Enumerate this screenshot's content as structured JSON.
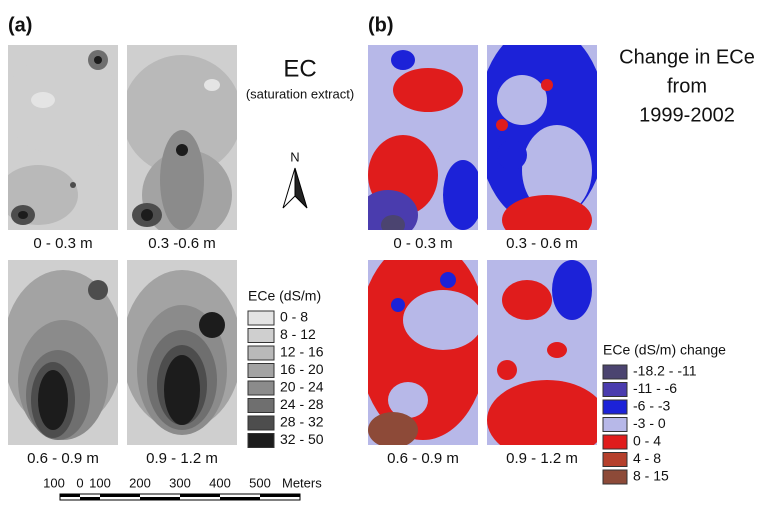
{
  "panel_a": {
    "label": "(a)",
    "title": "EC",
    "subtitle": "(saturation extract)",
    "depths": [
      "0 - 0.3 m",
      "0.3 -0.6 m",
      "0.6 - 0.9 m",
      "0.9 - 1.2 m"
    ],
    "legend": {
      "title": "ECe (dS/m)",
      "classes": [
        "0 - 8",
        "8 - 12",
        "12 - 16",
        "16 - 20",
        "20 - 24",
        "24 - 28",
        "28 - 32",
        "32 - 50"
      ],
      "colors": [
        "#e4e4e4",
        "#cfcfcf",
        "#b9b9b9",
        "#a3a3a3",
        "#8b8b8b",
        "#6f6f6f",
        "#4d4d4d",
        "#1c1c1c"
      ]
    }
  },
  "north": "N",
  "scale_bar": {
    "labels": [
      "100",
      "0",
      "100",
      "200",
      "300",
      "400",
      "500"
    ],
    "unit": "Meters"
  },
  "panel_b": {
    "label": "(b)",
    "title": [
      "Change in ECe",
      "from",
      "1999-2002"
    ],
    "depths": [
      "0 - 0.3 m",
      "0.3 - 0.6 m",
      "0.6 - 0.9 m",
      "0.9 - 1.2 m"
    ],
    "legend": {
      "title": "ECe (dS/m) change",
      "classes": [
        "-18.2 - -11",
        "-11 - -6",
        "-6 - -3",
        "-3 - 0",
        "0 - 4",
        "4 - 8",
        "8 - 15"
      ],
      "colors": [
        "#4b4470",
        "#4a3cae",
        "#1c22d8",
        "#b7b8e8",
        "#e01c1c",
        "#b5402c",
        "#8d4a38"
      ]
    }
  }
}
